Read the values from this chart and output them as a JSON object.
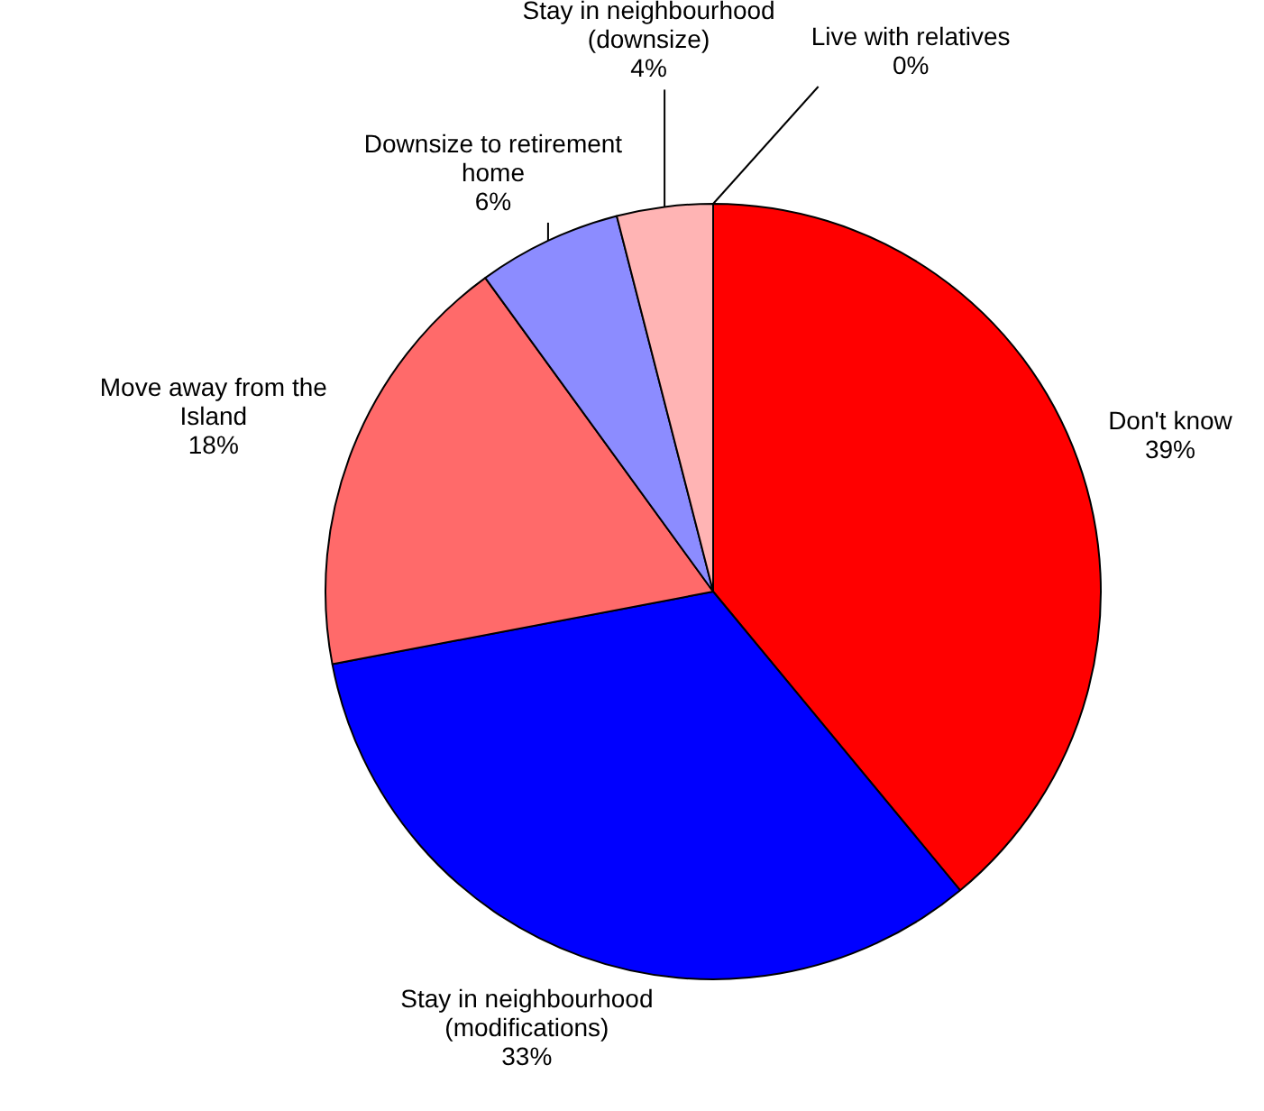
{
  "chart_data": {
    "type": "pie",
    "categories": [
      "Don't know",
      "Stay in neighbourhood (modifications)",
      "Move away from the Island",
      "Downsize to retirement home",
      "Stay in neighbourhood (downsize)",
      "Live with relatives"
    ],
    "values": [
      39,
      33,
      18,
      6,
      4,
      0
    ],
    "colors": [
      "#ff0000",
      "#0000ff",
      "#ff6a6a",
      "#8c8cff",
      "#ffb4b4",
      "#bbbbbb"
    ],
    "value_labels": [
      "39%",
      "33%",
      "18%",
      "6%",
      "4%",
      "0%"
    ],
    "legend": false
  }
}
